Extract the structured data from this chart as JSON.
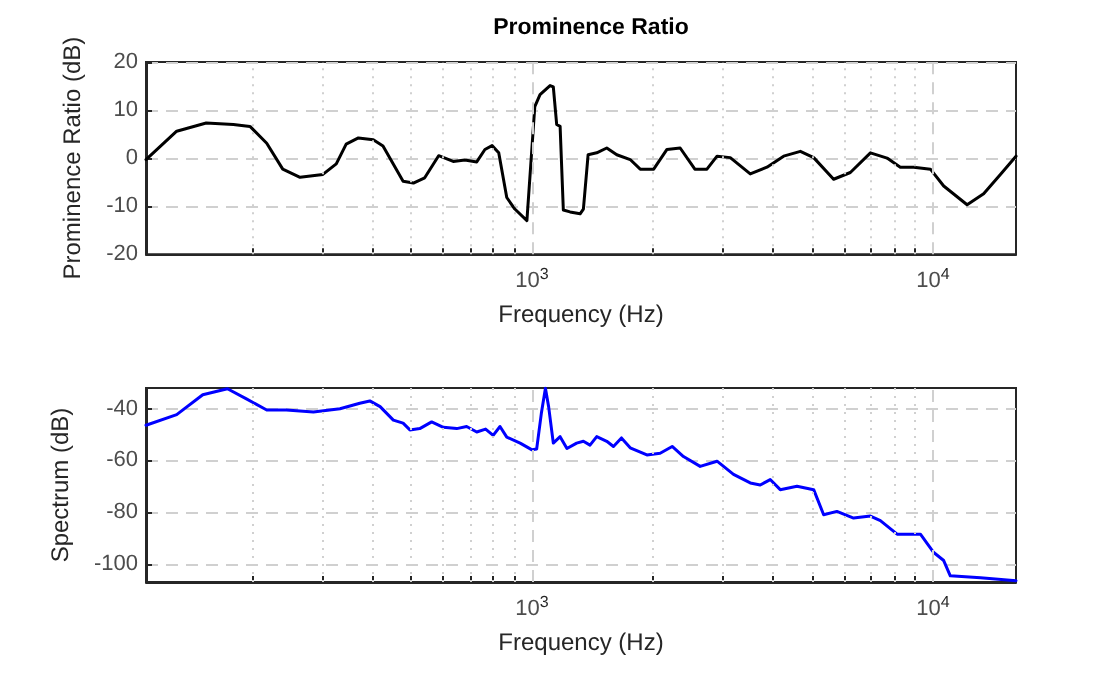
{
  "chart_data": [
    {
      "type": "line",
      "title": "Prominence Ratio",
      "xlabel": "Frequency (Hz)",
      "ylabel": "Prominence Ratio (dB)",
      "log": "x",
      "grid": true,
      "marker": "none",
      "line_style": "solid",
      "xlim": [
        109,
        16100
      ],
      "ylim": [
        -20,
        20
      ],
      "xticks": [
        {
          "value": 200,
          "label": null
        },
        {
          "value": 300,
          "label": null
        },
        {
          "value": 400,
          "label": null
        },
        {
          "value": 500,
          "label": null
        },
        {
          "value": 600,
          "label": null
        },
        {
          "value": 700,
          "label": null
        },
        {
          "value": 800,
          "label": null
        },
        {
          "value": 900,
          "label": null
        },
        {
          "value": 1000,
          "label": "10$^{3}$"
        },
        {
          "value": 2000,
          "label": null
        },
        {
          "value": 3000,
          "label": null
        },
        {
          "value": 4000,
          "label": null
        },
        {
          "value": 5000,
          "label": null
        },
        {
          "value": 6000,
          "label": null
        },
        {
          "value": 7000,
          "label": null
        },
        {
          "value": 8000,
          "label": null
        },
        {
          "value": 9000,
          "label": null
        },
        {
          "value": 10000,
          "label": "10$^{4}$"
        }
      ],
      "yticks": [
        -20,
        -10,
        0,
        10,
        20
      ],
      "x": [
        109,
        130,
        154,
        180,
        198,
        218,
        239,
        264,
        301,
        325,
        344,
        369,
        402,
        425,
        477,
        506,
        540,
        585,
        636,
        680,
        728,
        763,
        795,
        826,
        865,
        906,
        971,
        1016,
        1047,
        1109,
        1130,
        1152,
        1175,
        1197,
        1244,
        1318,
        1343,
        1380,
        1450,
        1536,
        1627,
        1757,
        1861,
        2011,
        2170,
        2341,
        2547,
        2730,
        2893,
        3121,
        3501,
        3853,
        4240,
        4668,
        5039,
        5650,
        6220,
        6980,
        7680,
        8285,
        8950,
        9850,
        10630,
        12160,
        13370,
        14720,
        16100
      ],
      "series": [
        {
          "color": "#000000",
          "values": [
            -0.3,
            5.6,
            7.3,
            7.0,
            6.6,
            3.1,
            -2.3,
            -4.0,
            -3.4,
            -1.2,
            2.9,
            4.2,
            3.8,
            2.5,
            -4.8,
            -5.2,
            -4.1,
            0.5,
            -0.7,
            -0.4,
            -0.8,
            1.8,
            2.6,
            1.1,
            -8.2,
            -10.6,
            -13.0,
            10.7,
            13.2,
            15.1,
            14.8,
            7.0,
            6.6,
            -10.8,
            -11.2,
            -11.6,
            -10.6,
            0.7,
            1.1,
            2.1,
            0.7,
            -0.3,
            -2.3,
            -2.3,
            1.8,
            2.1,
            -2.3,
            -2.3,
            0.4,
            0.1,
            -3.3,
            -1.9,
            0.4,
            1.4,
            0.1,
            -4.4,
            -3.0,
            1.1,
            0.0,
            -1.9,
            -1.9,
            -2.3,
            -5.8,
            -9.7,
            -7.4,
            -3.4,
            0.4
          ]
        }
      ]
    },
    {
      "type": "line",
      "xlabel": "Frequency (Hz)",
      "ylabel": "Spectrum (dB)",
      "log": "x",
      "grid": true,
      "marker": "none",
      "line_style": "solid",
      "xlim": [
        109,
        16100
      ],
      "ylim": [
        -107,
        -32
      ],
      "xticks": [
        {
          "value": 200,
          "label": null
        },
        {
          "value": 300,
          "label": null
        },
        {
          "value": 400,
          "label": null
        },
        {
          "value": 500,
          "label": null
        },
        {
          "value": 600,
          "label": null
        },
        {
          "value": 700,
          "label": null
        },
        {
          "value": 800,
          "label": null
        },
        {
          "value": 900,
          "label": null
        },
        {
          "value": 1000,
          "label": "10$^{3}$"
        },
        {
          "value": 2000,
          "label": null
        },
        {
          "value": 3000,
          "label": null
        },
        {
          "value": 4000,
          "label": null
        },
        {
          "value": 5000,
          "label": null
        },
        {
          "value": 6000,
          "label": null
        },
        {
          "value": 7000,
          "label": null
        },
        {
          "value": 8000,
          "label": null
        },
        {
          "value": 9000,
          "label": null
        },
        {
          "value": 10000,
          "label": "10$^{4}$"
        }
      ],
      "yticks": [
        -100,
        -80,
        -60,
        -40
      ],
      "x": [
        109,
        130,
        151,
        174,
        194,
        218,
        244,
        285,
        332,
        372,
        394,
        418,
        451,
        477,
        496,
        525,
        562,
        601,
        649,
        687,
        728,
        766,
        800,
        832,
        865,
        934,
        1000,
        1027,
        1055,
        1080,
        1100,
        1130,
        1175,
        1222,
        1292,
        1343,
        1395,
        1450,
        1536,
        1596,
        1671,
        1757,
        1934,
        2087,
        2236,
        2386,
        2626,
        2893,
        3180,
        3501,
        3707,
        3926,
        4158,
        4578,
        5039,
        5336,
        5757,
        6336,
        6980,
        7390,
        8135,
        8780,
        9300,
        10040,
        10630,
        11040,
        13130,
        16100
      ],
      "series": [
        {
          "color": "#0000ff",
          "values": [
            -46.4,
            -42.3,
            -34.6,
            -32.3,
            -36.2,
            -40.5,
            -40.5,
            -41.3,
            -40.0,
            -37.9,
            -37.0,
            -39.2,
            -44.4,
            -45.6,
            -48.2,
            -47.7,
            -45.1,
            -47.2,
            -47.7,
            -46.9,
            -49.0,
            -47.9,
            -50.3,
            -46.9,
            -51.0,
            -53.3,
            -55.9,
            -55.6,
            -41.8,
            -32.1,
            -39.2,
            -53.3,
            -50.8,
            -55.4,
            -53.3,
            -52.6,
            -54.1,
            -50.8,
            -52.6,
            -54.6,
            -51.3,
            -55.1,
            -57.9,
            -57.2,
            -54.6,
            -58.5,
            -62.3,
            -60.3,
            -65.4,
            -68.7,
            -69.5,
            -67.4,
            -71.3,
            -70.0,
            -71.3,
            -81.0,
            -79.7,
            -82.3,
            -81.5,
            -83.3,
            -88.5,
            -88.5,
            -88.5,
            -95.6,
            -98.7,
            -104.6,
            -105.4,
            -106.5
          ]
        }
      ]
    }
  ]
}
